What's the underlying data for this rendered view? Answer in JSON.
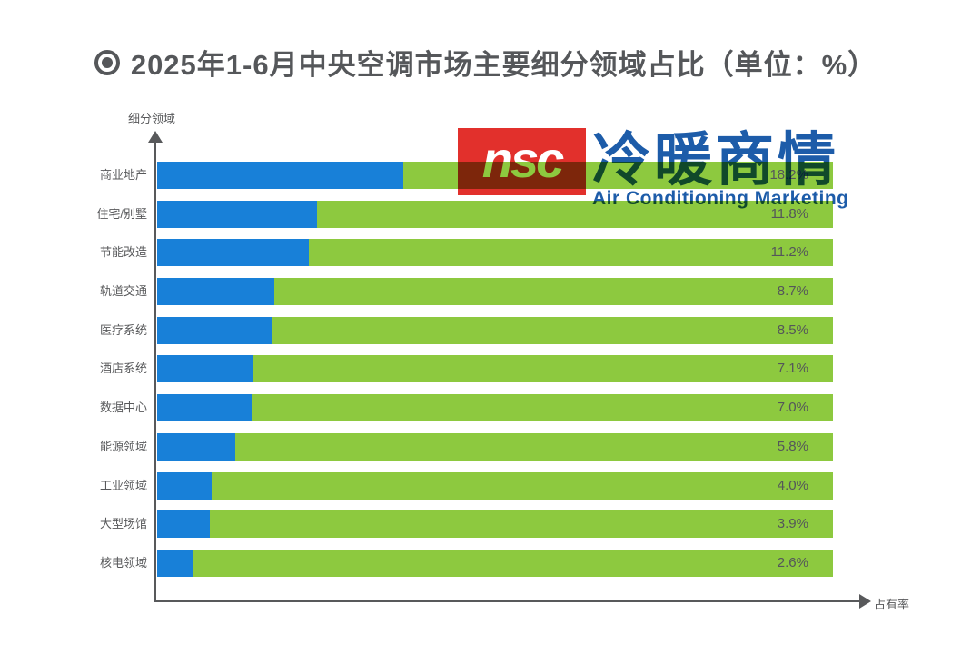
{
  "title": {
    "icon": "target-icon",
    "text": "2025年1-6月中央空调市场主要细分领域占比（单位：%）"
  },
  "axes": {
    "y_label": "细分领域",
    "x_label": "占有率"
  },
  "logo": {
    "box_text": "nsc",
    "cn_text": "冷暖商情",
    "en_text": "Air Conditioning Marketing"
  },
  "colors": {
    "bar_blue": "#1880D8",
    "bar_green": "#8DC93F",
    "text_gray": "#58595B",
    "logo_red": "#E2302C",
    "logo_blue": "#1D5CA9"
  },
  "chart_data": {
    "type": "bar",
    "orientation": "horizontal",
    "title": "2025年1-6月中央空调市场主要细分领域占比（单位：%）",
    "xlabel": "占有率",
    "ylabel": "细分领域",
    "xlim": [
      0,
      50
    ],
    "grid": false,
    "legend": false,
    "categories": [
      "商业地产",
      "住宅/别墅",
      "节能改造",
      "轨道交通",
      "医疗系统",
      "酒店系统",
      "数据中心",
      "能源领域",
      "工业领域",
      "大型场馆",
      "核电领域"
    ],
    "values": [
      18.2,
      11.8,
      11.2,
      8.7,
      8.5,
      7.1,
      7.0,
      5.8,
      4.0,
      3.9,
      2.6
    ],
    "value_labels": [
      "18.2%",
      "11.8%",
      "11.2%",
      "8.7%",
      "8.5%",
      "7.1%",
      "7.0%",
      "5.8%",
      "4.0%",
      "3.9%",
      "2.6%"
    ],
    "note": "each row is a full-width track: blue segment = value on 0-50 scale, green = remainder"
  }
}
